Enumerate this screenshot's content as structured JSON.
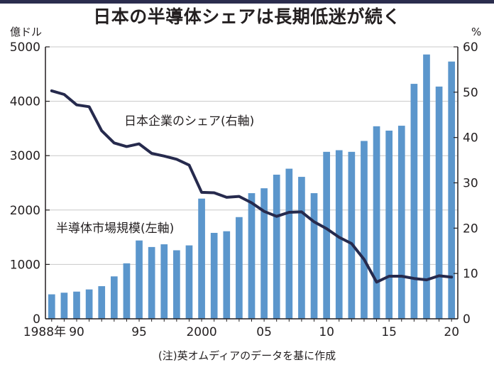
{
  "chart_data": {
    "type": "bar",
    "title": "日本の半導体シェアは長期低迷が続く",
    "note": "(注)英オムディアのデータを基に作成",
    "colors": {
      "bar": "#5b96cc",
      "line": "#262a4d",
      "grid": "#c8c8c8",
      "axis": "#231f20"
    },
    "x": [
      1988,
      1989,
      1990,
      1991,
      1992,
      1993,
      1994,
      1995,
      1996,
      1997,
      1998,
      1999,
      2000,
      2001,
      2002,
      2003,
      2004,
      2005,
      2006,
      2007,
      2008,
      2009,
      2010,
      2011,
      2012,
      2013,
      2014,
      2015,
      2016,
      2017,
      2018,
      2019,
      2020
    ],
    "x_ticks": [
      {
        "x": 1988,
        "label": "1988年"
      },
      {
        "x": 1990,
        "label": "90"
      },
      {
        "x": 1995,
        "label": "95"
      },
      {
        "x": 2000,
        "label": "2000"
      },
      {
        "x": 2005,
        "label": "05"
      },
      {
        "x": 2010,
        "label": "10"
      },
      {
        "x": 2015,
        "label": "15"
      },
      {
        "x": 2020,
        "label": "20"
      }
    ],
    "y_left": {
      "unit": "億ドル",
      "range": [
        0,
        5000
      ],
      "ticks": [
        0,
        1000,
        2000,
        3000,
        4000,
        5000
      ]
    },
    "y_right": {
      "unit": "%",
      "range": [
        0,
        60
      ],
      "ticks": [
        0,
        10,
        20,
        30,
        40,
        50,
        60
      ]
    },
    "series": [
      {
        "name": "半導体市場規模(左軸)",
        "type": "bar",
        "axis": "left",
        "values": [
          450,
          480,
          500,
          540,
          600,
          780,
          1020,
          1440,
          1320,
          1370,
          1260,
          1350,
          2210,
          1580,
          1610,
          1870,
          2310,
          2400,
          2650,
          2760,
          2610,
          2310,
          3070,
          3100,
          3070,
          3270,
          3540,
          3460,
          3550,
          4320,
          4860,
          4270,
          4730
        ]
      },
      {
        "name": "日本企業のシェア(右軸)",
        "type": "line",
        "axis": "right",
        "values": [
          50.3,
          49.5,
          47.2,
          46.8,
          41.5,
          38.8,
          38.0,
          38.6,
          36.5,
          35.9,
          35.2,
          33.9,
          27.9,
          27.8,
          26.8,
          27.0,
          25.6,
          23.7,
          22.6,
          23.5,
          23.6,
          21.4,
          19.9,
          18.0,
          16.6,
          13.1,
          8.1,
          9.4,
          9.4,
          8.9,
          8.6,
          9.5,
          9.2
        ]
      }
    ],
    "legend": "inline labels",
    "grid": true
  }
}
